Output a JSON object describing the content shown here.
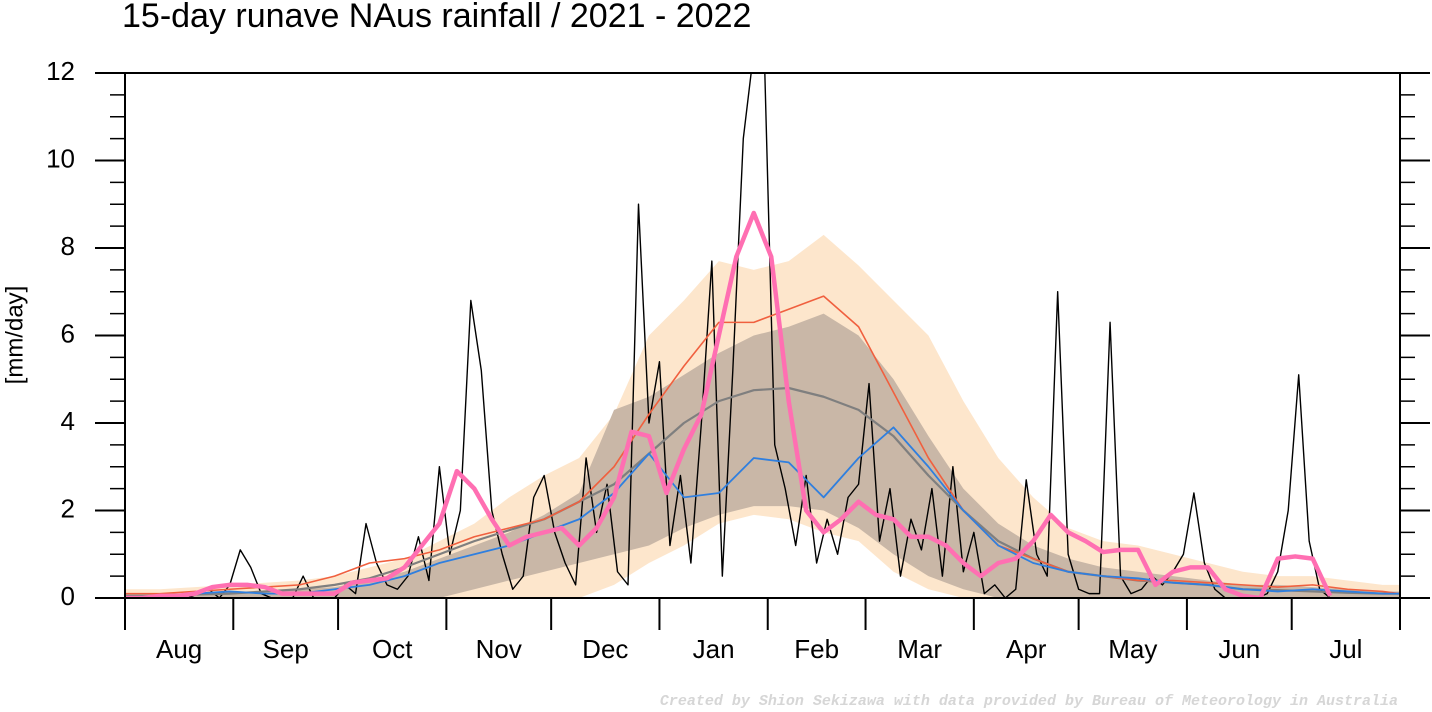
{
  "chart_data": {
    "type": "line",
    "title": "15-day runave NAus rainfall  /  2021 - 2022",
    "y_label": "[mm/day]",
    "footer": "Created by Shion Sekizawa with data provided by Bureau of Meteorology in Australia",
    "xlim": [
      0,
      365
    ],
    "month_starts": [
      0,
      31,
      61,
      92,
      122,
      153,
      184,
      212,
      243,
      273,
      304,
      334,
      365
    ],
    "months": [
      "Aug",
      "Sep",
      "Oct",
      "Nov",
      "Dec",
      "Jan",
      "Feb",
      "Mar",
      "Apr",
      "May",
      "Jun",
      "Jul"
    ],
    "ylim": [
      0,
      12
    ],
    "yticks": [
      0,
      2,
      4,
      6,
      8,
      10,
      12
    ],
    "y_minor_per_major": 4,
    "bands": [
      {
        "color": "#fde6cc",
        "x": [
          0,
          10,
          20,
          30,
          40,
          50,
          60,
          70,
          80,
          90,
          100,
          110,
          120,
          130,
          140,
          150,
          160,
          170,
          180,
          190,
          200,
          210,
          220,
          230,
          240,
          250,
          260,
          270,
          280,
          290,
          300,
          310,
          320,
          330,
          340,
          350,
          360,
          365
        ],
        "low": [
          0,
          0,
          0,
          0,
          0,
          0,
          0,
          0,
          0,
          0,
          0,
          0,
          0,
          0,
          0.3,
          0.8,
          1.2,
          1.7,
          1.9,
          1.8,
          1.5,
          1.3,
          0.6,
          0.2,
          0,
          0,
          0,
          0,
          0,
          0,
          0,
          0,
          0,
          0,
          0,
          0,
          0,
          0
        ],
        "high": [
          0.2,
          0.2,
          0.25,
          0.3,
          0.35,
          0.4,
          0.5,
          0.7,
          0.9,
          1.3,
          1.7,
          2.3,
          2.8,
          3.2,
          4.2,
          6.0,
          6.8,
          7.7,
          7.5,
          7.7,
          8.3,
          7.6,
          6.8,
          6.0,
          4.5,
          3.2,
          2.3,
          1.6,
          1.3,
          1.2,
          1.0,
          0.8,
          0.6,
          0.5,
          0.5,
          0.4,
          0.3,
          0.3
        ]
      },
      {
        "color": "#c9b7a7",
        "x": [
          0,
          10,
          20,
          30,
          40,
          50,
          60,
          70,
          80,
          90,
          100,
          110,
          120,
          130,
          140,
          150,
          160,
          170,
          180,
          190,
          200,
          210,
          220,
          230,
          240,
          250,
          260,
          270,
          280,
          290,
          300,
          310,
          320,
          330,
          340,
          350,
          360,
          365
        ],
        "low": [
          0,
          0,
          0,
          0,
          0,
          0,
          0,
          0,
          0,
          0,
          0.2,
          0.4,
          0.6,
          0.8,
          1.0,
          1.2,
          1.6,
          1.9,
          2.1,
          2.1,
          2.0,
          1.6,
          1.0,
          0.5,
          0.2,
          0,
          0,
          0,
          0,
          0,
          0,
          0,
          0,
          0,
          0,
          0,
          0,
          0
        ],
        "high": [
          0.1,
          0.1,
          0.1,
          0.15,
          0.15,
          0.2,
          0.25,
          0.4,
          0.6,
          0.9,
          1.2,
          1.5,
          1.9,
          2.4,
          4.3,
          4.6,
          5.1,
          5.6,
          6.0,
          6.2,
          6.5,
          6.0,
          5.0,
          3.7,
          2.5,
          1.7,
          1.2,
          0.9,
          0.7,
          0.6,
          0.5,
          0.4,
          0.3,
          0.3,
          0.25,
          0.2,
          0.15,
          0.15
        ]
      }
    ],
    "series": [
      {
        "color": "#000000",
        "width": 1.4,
        "x": [
          0,
          3,
          6,
          9,
          12,
          15,
          18,
          21,
          24,
          27,
          30,
          33,
          36,
          39,
          42,
          45,
          48,
          51,
          54,
          57,
          60,
          63,
          66,
          69,
          72,
          75,
          78,
          81,
          84,
          87,
          90,
          93,
          96,
          99,
          102,
          105,
          108,
          111,
          114,
          117,
          120,
          123,
          126,
          129,
          132,
          135,
          138,
          141,
          144,
          147,
          150,
          153,
          156,
          159,
          162,
          165,
          168,
          171,
          174,
          177,
          180,
          183,
          186,
          189,
          192,
          195,
          198,
          201,
          204,
          207,
          210,
          213,
          216,
          219,
          222,
          225,
          228,
          231,
          234,
          237,
          240,
          243,
          246,
          249,
          252,
          255,
          258,
          261,
          264,
          267,
          270,
          273,
          276,
          279,
          282,
          285,
          288,
          291,
          294,
          297,
          300,
          303,
          306,
          309,
          312,
          315,
          318,
          321,
          324,
          327,
          330,
          333,
          336,
          339,
          342,
          345,
          348,
          351,
          354,
          357,
          360,
          363
        ],
        "values": [
          0,
          0,
          0,
          0,
          0,
          0,
          0,
          0.1,
          0.2,
          0,
          0.3,
          1.1,
          0.7,
          0.1,
          0,
          0,
          0,
          0.5,
          0,
          0,
          0,
          0.3,
          0.1,
          1.7,
          0.8,
          0.3,
          0.2,
          0.5,
          1.4,
          0.4,
          3.0,
          1.0,
          2.0,
          6.8,
          5.2,
          2.0,
          1.0,
          0.2,
          0.5,
          2.3,
          2.8,
          1.5,
          0.8,
          0.3,
          3.2,
          1.5,
          2.6,
          0.6,
          0.3,
          9.0,
          4.0,
          5.4,
          1.2,
          2.8,
          0.8,
          4.0,
          7.7,
          0.5,
          5.2,
          10.5,
          12.5,
          12.5,
          3.5,
          2.5,
          1.2,
          2.8,
          0.8,
          1.8,
          1.0,
          2.3,
          2.6,
          4.9,
          1.3,
          2.5,
          0.5,
          1.8,
          1.1,
          2.5,
          0.5,
          3.0,
          0.6,
          1.5,
          0.1,
          0.3,
          0,
          0.2,
          2.7,
          1.0,
          0.5,
          7.0,
          1.0,
          0.2,
          0.1,
          0.1,
          6.3,
          0.5,
          0.1,
          0.2,
          0.5,
          0.3,
          0.6,
          1.0,
          2.4,
          0.8,
          0.2,
          0,
          0,
          0,
          0,
          0.1,
          0.6,
          2.0,
          5.1,
          1.3,
          0.2,
          0,
          0,
          0,
          0,
          0,
          0,
          0
        ]
      },
      {
        "color": "#7f7f7f",
        "width": 2.2,
        "x": [
          0,
          10,
          20,
          30,
          40,
          50,
          60,
          70,
          80,
          90,
          100,
          110,
          120,
          130,
          140,
          150,
          160,
          170,
          180,
          190,
          200,
          210,
          220,
          230,
          240,
          250,
          260,
          270,
          280,
          290,
          300,
          310,
          320,
          330,
          340,
          350,
          360,
          365
        ],
        "values": [
          0.05,
          0.05,
          0.08,
          0.1,
          0.15,
          0.2,
          0.3,
          0.45,
          0.7,
          1.0,
          1.3,
          1.55,
          1.8,
          2.2,
          2.6,
          3.3,
          4.0,
          4.5,
          4.75,
          4.8,
          4.6,
          4.3,
          3.7,
          2.8,
          2.0,
          1.3,
          0.9,
          0.6,
          0.5,
          0.4,
          0.35,
          0.3,
          0.2,
          0.18,
          0.15,
          0.12,
          0.1,
          0.1
        ]
      },
      {
        "color": "#f0603f",
        "width": 1.6,
        "x": [
          0,
          10,
          20,
          30,
          40,
          50,
          60,
          70,
          80,
          90,
          100,
          110,
          120,
          130,
          140,
          150,
          160,
          170,
          180,
          190,
          200,
          210,
          220,
          230,
          240,
          250,
          260,
          270,
          280,
          290,
          300,
          310,
          320,
          330,
          340,
          350,
          360,
          365
        ],
        "values": [
          0.1,
          0.1,
          0.15,
          0.2,
          0.25,
          0.3,
          0.5,
          0.8,
          0.9,
          1.1,
          1.4,
          1.6,
          1.8,
          2.2,
          3.0,
          4.2,
          5.3,
          6.3,
          6.3,
          6.6,
          6.9,
          6.2,
          4.7,
          3.2,
          2.0,
          1.2,
          0.9,
          0.6,
          0.5,
          0.4,
          0.4,
          0.35,
          0.3,
          0.25,
          0.3,
          0.2,
          0.15,
          0.1
        ]
      },
      {
        "color": "#2f7fdf",
        "width": 1.8,
        "x": [
          0,
          10,
          20,
          30,
          40,
          50,
          60,
          70,
          80,
          90,
          100,
          110,
          120,
          130,
          140,
          150,
          160,
          170,
          180,
          190,
          200,
          210,
          220,
          230,
          240,
          250,
          260,
          270,
          280,
          290,
          300,
          310,
          320,
          330,
          340,
          350,
          360,
          365
        ],
        "values": [
          0,
          0.05,
          0.1,
          0.15,
          0.1,
          0.1,
          0.2,
          0.3,
          0.5,
          0.8,
          1.0,
          1.2,
          1.5,
          1.8,
          2.4,
          3.3,
          2.3,
          2.4,
          3.2,
          3.1,
          2.3,
          3.2,
          3.9,
          3.0,
          2.0,
          1.2,
          0.8,
          0.6,
          0.5,
          0.45,
          0.35,
          0.3,
          0.2,
          0.15,
          0.2,
          0.15,
          0.1,
          0.1
        ]
      },
      {
        "color": "#ff6fb2",
        "width": 4.5,
        "x": [
          0,
          5,
          10,
          15,
          20,
          25,
          30,
          35,
          40,
          45,
          50,
          55,
          60,
          65,
          70,
          75,
          80,
          85,
          90,
          95,
          100,
          105,
          110,
          115,
          120,
          125,
          130,
          135,
          140,
          145,
          150,
          155,
          160,
          165,
          170,
          175,
          180,
          185,
          190,
          195,
          200,
          205,
          210,
          215,
          220,
          225,
          230,
          235,
          240,
          245,
          250,
          255,
          260,
          265,
          270,
          275,
          280,
          285,
          290,
          295,
          300,
          305,
          310,
          315,
          320,
          325,
          330,
          335,
          340,
          345,
          350,
          355,
          360,
          365
        ],
        "values": [
          0,
          0,
          0.05,
          0.05,
          0.1,
          0.25,
          0.3,
          0.3,
          0.25,
          0.1,
          0.1,
          0.1,
          0.1,
          0.35,
          0.4,
          0.45,
          0.7,
          1.2,
          1.7,
          2.9,
          2.5,
          1.8,
          1.2,
          1.4,
          1.5,
          1.6,
          1.2,
          1.6,
          2.3,
          3.8,
          3.7,
          2.4,
          3.4,
          4.2,
          6.0,
          7.8,
          8.8,
          7.8,
          4.5,
          2.0,
          1.5,
          1.8,
          2.2,
          1.9,
          1.8,
          1.4,
          1.4,
          1.2,
          0.8,
          0.5,
          0.8,
          0.9,
          1.3,
          1.9,
          1.5,
          1.3,
          1.05,
          1.1,
          1.1,
          0.3,
          0.6,
          0.7,
          0.7,
          0.2,
          0.05,
          0,
          0.9,
          0.95,
          0.9,
          0.05,
          null,
          null,
          null,
          null
        ]
      }
    ]
  }
}
